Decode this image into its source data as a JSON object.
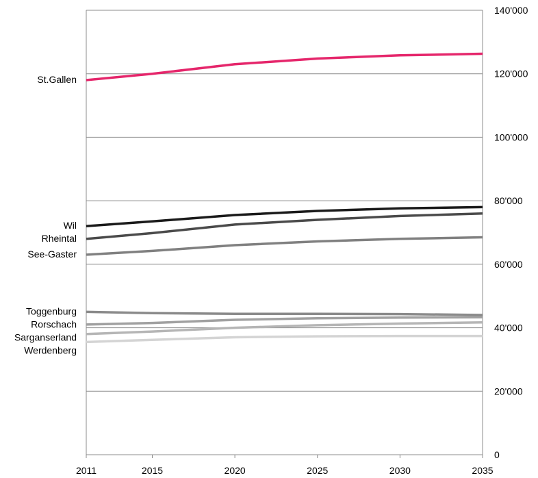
{
  "chart_data": {
    "type": "line",
    "title": "",
    "xlabel": "",
    "ylabel": "",
    "x": [
      2011,
      2015,
      2020,
      2025,
      2030,
      2035
    ],
    "x_tick_labels": [
      "2011",
      "2015",
      "2020",
      "2025",
      "2030",
      "2035"
    ],
    "ylim": [
      0,
      140000
    ],
    "y_tick_values": [
      0,
      20000,
      40000,
      60000,
      80000,
      100000,
      120000,
      140000
    ],
    "y_tick_labels": [
      "0",
      "20'000",
      "40'000",
      "60'000",
      "80'000",
      "100'000",
      "120'000",
      "140'000"
    ],
    "grid": "horizontal",
    "y_axis_side": "right",
    "series": [
      {
        "name": "St.Gallen",
        "color": "#e5266b",
        "values": [
          118000,
          120000,
          123000,
          124800,
          125800,
          126300
        ]
      },
      {
        "name": "Wil",
        "color": "#1a1a1a",
        "values": [
          72000,
          73500,
          75500,
          76800,
          77600,
          78000
        ]
      },
      {
        "name": "Rheintal",
        "color": "#4a4a4a",
        "values": [
          68000,
          69800,
          72500,
          74000,
          75200,
          76000
        ]
      },
      {
        "name": "See-Gaster",
        "color": "#808080",
        "values": [
          63000,
          64200,
          66000,
          67200,
          68000,
          68500
        ]
      },
      {
        "name": "Toggenburg",
        "color": "#8a8a8a",
        "values": [
          45000,
          44600,
          44400,
          44400,
          44300,
          44000
        ]
      },
      {
        "name": "Rorschach",
        "color": "#a0a0a0",
        "values": [
          41000,
          41500,
          42500,
          43000,
          43200,
          43300
        ]
      },
      {
        "name": "Sarganserland",
        "color": "#b5b5b5",
        "values": [
          38000,
          38800,
          40000,
          40800,
          41300,
          41700
        ]
      },
      {
        "name": "Werdenberg",
        "color": "#d4d4d4",
        "values": [
          35500,
          36200,
          37000,
          37300,
          37400,
          37400
        ]
      }
    ]
  }
}
